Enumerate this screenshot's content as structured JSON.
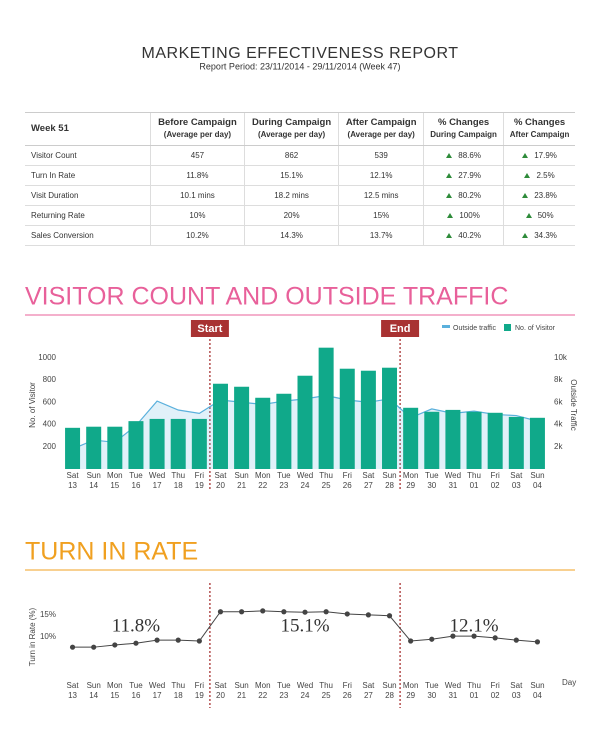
{
  "header": {
    "title": "MARKETING EFFECTIVENESS REPORT",
    "subtitle": "Report Period: 23/11/2014 - 29/11/2014 (Week 47)"
  },
  "table": {
    "header": [
      [
        "Week 51"
      ],
      [
        "Before Campaign",
        "(Average per day)"
      ],
      [
        "During Campaign",
        "(Average per day)"
      ],
      [
        "After Campaign",
        "(Average per day)"
      ],
      [
        "% Changes",
        "During Campaign"
      ],
      [
        "% Changes",
        "After Campaign"
      ]
    ],
    "rows": [
      [
        "Visitor Count",
        "457",
        "862",
        "539",
        "88.6%",
        "17.9%"
      ],
      [
        "Turn In Rate",
        "11.8%",
        "15.1%",
        "12.1%",
        "27.9%",
        "2.5%"
      ],
      [
        "Visit Duration",
        "10.1 mins",
        "18.2 mins",
        "12.5 mins",
        "80.2%",
        "23.8%"
      ],
      [
        "Returning Rate",
        "10%",
        "20%",
        "15%",
        "100%",
        "50%"
      ],
      [
        "Sales Conversion",
        "10.2%",
        "14.3%",
        "13.7%",
        "40.2%",
        "34.3%"
      ]
    ]
  },
  "chart_data": [
    {
      "type": "combo",
      "title": "VISITOR COUNT AND OUTSIDE TRAFFIC",
      "title_color": "#e8609a",
      "ylabel": "No. of Visitor",
      "y2label": "Outside Traffic",
      "campaign": {
        "start": "Start",
        "end": "End",
        "color": "#a83232"
      },
      "categories": [
        [
          "Sat",
          "13"
        ],
        [
          "Sun",
          "14"
        ],
        [
          "Mon",
          "15"
        ],
        [
          "Tue",
          "16"
        ],
        [
          "Wed",
          "17"
        ],
        [
          "Thu",
          "18"
        ],
        [
          "Fri",
          "19"
        ],
        [
          "Sat",
          "20"
        ],
        [
          "Sun",
          "21"
        ],
        [
          "Mon",
          "22"
        ],
        [
          "Tue",
          "23"
        ],
        [
          "Wed",
          "24"
        ],
        [
          "Thu",
          "25"
        ],
        [
          "Fri",
          "26"
        ],
        [
          "Sat",
          "27"
        ],
        [
          "Sun",
          "28"
        ],
        [
          "Mon",
          "29"
        ],
        [
          "Tue",
          "30"
        ],
        [
          "Wed",
          "31"
        ],
        [
          "Thu",
          "01"
        ],
        [
          "Fri",
          "02"
        ],
        [
          "Sat",
          "03"
        ],
        [
          "Sun",
          "04"
        ]
      ],
      "series": [
        {
          "name": "Outside traffic",
          "type": "line",
          "axis": "y2",
          "color": "#5ab0dc",
          "values": [
            1800,
            2600,
            2400,
            3900,
            6100,
            5300,
            5000,
            6200,
            6000,
            5800,
            6100,
            6300,
            6600,
            6200,
            6000,
            6300,
            4600,
            5400,
            5000,
            5200,
            4900,
            4800,
            4300
          ]
        },
        {
          "name": "No. of Visitor",
          "type": "bar",
          "color": "#10a98a",
          "values": [
            370,
            380,
            380,
            430,
            450,
            450,
            450,
            766,
            739,
            640,
            676,
            838,
            1090,
            901,
            883,
            910,
            550,
            514,
            531,
            514,
            505,
            468,
            460
          ]
        }
      ],
      "ylim": [
        0,
        1150
      ],
      "yticks": [
        200,
        400,
        600,
        800,
        1000
      ],
      "y2lim": [
        0,
        11500
      ],
      "y2ticks": [
        {
          "value": 2000,
          "label": "2k"
        },
        {
          "value": 4000,
          "label": "4k"
        },
        {
          "value": 6000,
          "label": "6k"
        },
        {
          "value": 8000,
          "label": "8k"
        },
        {
          "value": 10000,
          "label": "10k"
        }
      ],
      "legend": "top-right"
    },
    {
      "type": "line",
      "title": "TURN IN RATE",
      "title_color": "#f0a020",
      "ylabel": "Turn in Rate (%)",
      "xlabel": "Day",
      "annotations": [
        "11.8%",
        "15.1%",
        "12.1%"
      ],
      "campaign": {
        "color": "#a83232"
      },
      "categories": [
        [
          "Sat",
          "13"
        ],
        [
          "Sun",
          "14"
        ],
        [
          "Mon",
          "15"
        ],
        [
          "Tue",
          "16"
        ],
        [
          "Wed",
          "17"
        ],
        [
          "Thu",
          "18"
        ],
        [
          "Fri",
          "19"
        ],
        [
          "Sat",
          "20"
        ],
        [
          "Sun",
          "21"
        ],
        [
          "Mon",
          "22"
        ],
        [
          "Tue",
          "23"
        ],
        [
          "Wed",
          "24"
        ],
        [
          "Thu",
          "25"
        ],
        [
          "Fri",
          "26"
        ],
        [
          "Sat",
          "27"
        ],
        [
          "Sun",
          "28"
        ],
        [
          "Mon",
          "29"
        ],
        [
          "Tue",
          "30"
        ],
        [
          "Wed",
          "31"
        ],
        [
          "Thu",
          "01"
        ],
        [
          "Fri",
          "02"
        ],
        [
          "Sat",
          "03"
        ],
        [
          "Sun",
          "04"
        ]
      ],
      "color": "#444444",
      "values": [
        7.7,
        7.7,
        8.2,
        8.6,
        9.3,
        9.3,
        9.1,
        15.7,
        15.7,
        15.9,
        15.7,
        15.6,
        15.7,
        15.2,
        15.0,
        14.8,
        9.1,
        9.5,
        10.2,
        10.2,
        9.8,
        9.3,
        8.9
      ],
      "ylim": [
        3,
        17
      ],
      "yticks": [
        {
          "value": 10,
          "label": "10%"
        },
        {
          "value": 15,
          "label": "15%"
        }
      ]
    }
  ]
}
